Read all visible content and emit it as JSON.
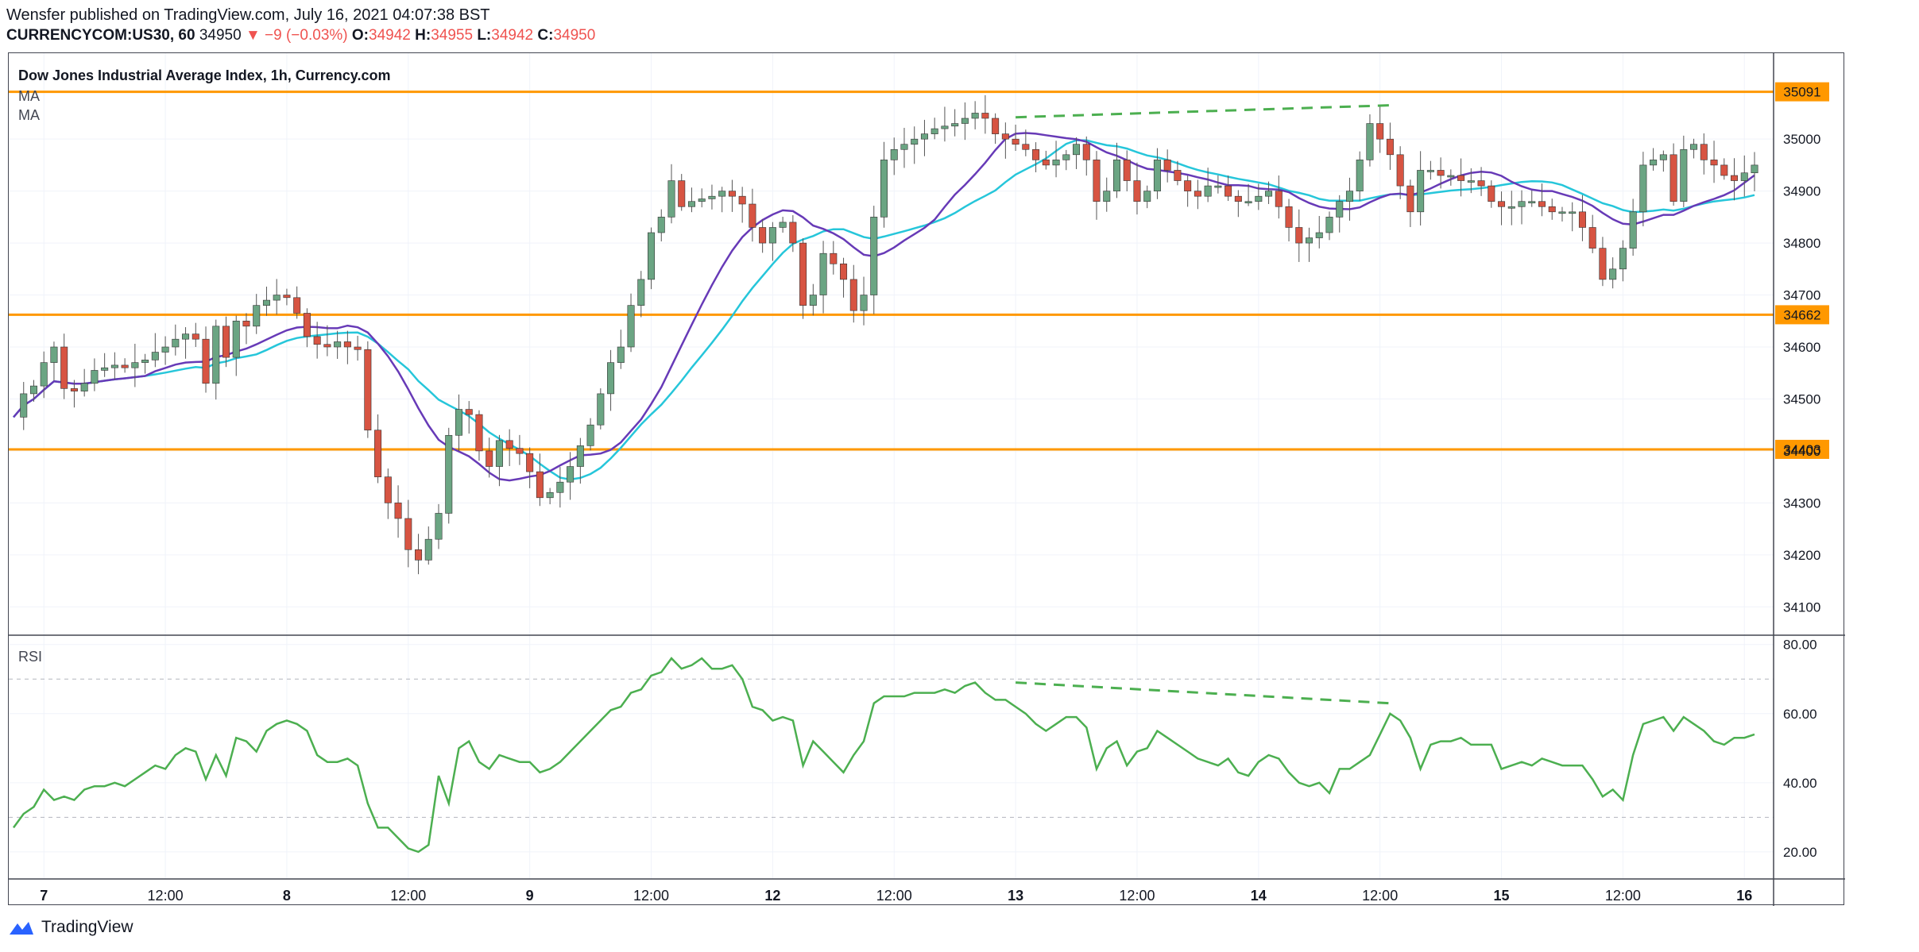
{
  "header": {
    "line1": "Wensfer published on TradingView.com, July 16, 2021 04:07:38 BST",
    "symbol": "CURRENCYCOM:US30, 60",
    "last": "34950",
    "change": "▼ −9 (−0.03%)",
    "o_label": "O:",
    "o_val": "34942",
    "h_label": "H:",
    "h_val": "34955",
    "l_label": "L:",
    "l_val": "34942",
    "c_label": "C:",
    "c_val": "34950"
  },
  "legend": {
    "title": "Dow Jones Industrial Average Index, 1h, Currency.com",
    "ma1": "MA",
    "ma2": "MA",
    "rsi": "RSI"
  },
  "brand": {
    "name": "TradingView"
  },
  "colors": {
    "up": "#6ba583",
    "down": "#d75442",
    "ma_slow": "#26c6da",
    "ma_fast": "#673ab7",
    "rsi": "#4caf50",
    "level": "#ff9800",
    "divergence": "#4caf50"
  },
  "chart_data": [
    {
      "type": "candlestick",
      "title": "Dow Jones Industrial Average Index, 1h, Currency.com",
      "ylim": [
        34050,
        35150
      ],
      "y_ticks": [
        "34100",
        "34200",
        "34300",
        "34400",
        "34500",
        "34600",
        "34700",
        "34800",
        "34900",
        "35000"
      ],
      "x_ticks": [
        {
          "t": 3,
          "label": "7"
        },
        {
          "t": 15,
          "label": "12:00"
        },
        {
          "t": 27,
          "label": "8"
        },
        {
          "t": 39,
          "label": "12:00"
        },
        {
          "t": 51,
          "label": "9"
        },
        {
          "t": 63,
          "label": "12:00"
        },
        {
          "t": 75,
          "label": "12"
        },
        {
          "t": 87,
          "label": "12:00"
        },
        {
          "t": 99,
          "label": "13"
        },
        {
          "t": 111,
          "label": "12:00"
        },
        {
          "t": 123,
          "label": "14"
        },
        {
          "t": 135,
          "label": "12:00"
        },
        {
          "t": 147,
          "label": "15"
        },
        {
          "t": 159,
          "label": "12:00"
        },
        {
          "t": 171,
          "label": "16"
        }
      ],
      "horizontal_levels": [
        {
          "value": 35091,
          "label": "35091"
        },
        {
          "value": 34662,
          "label": "34662"
        },
        {
          "value": 34403,
          "label": "34403"
        }
      ],
      "close": [
        34465,
        34510,
        34525,
        34570,
        34600,
        34520,
        34515,
        34530,
        34555,
        34560,
        34565,
        34560,
        34570,
        34575,
        34590,
        34600,
        34615,
        34625,
        34615,
        34530,
        34640,
        34580,
        34650,
        34640,
        34680,
        34690,
        34700,
        34695,
        34665,
        34620,
        34605,
        34600,
        34610,
        34600,
        34595,
        34440,
        34350,
        34300,
        34270,
        34210,
        34190,
        34230,
        34280,
        34430,
        34480,
        34470,
        34400,
        34370,
        34420,
        34405,
        34395,
        34360,
        34310,
        34320,
        34340,
        34370,
        34410,
        34450,
        34510,
        34570,
        34600,
        34680,
        34730,
        34820,
        34850,
        34920,
        34870,
        34880,
        34885,
        34890,
        34900,
        34890,
        34875,
        34830,
        34800,
        34830,
        34840,
        34800,
        34680,
        34700,
        34780,
        34760,
        34730,
        34670,
        34700,
        34850,
        34960,
        34980,
        34990,
        35000,
        35010,
        35020,
        35025,
        35030,
        35040,
        35050,
        35040,
        35010,
        35000,
        34990,
        34980,
        34960,
        34950,
        34960,
        34970,
        34990,
        34960,
        34880,
        34900,
        34960,
        34920,
        34880,
        34900,
        34960,
        34940,
        34920,
        34900,
        34890,
        34910,
        34910,
        34890,
        34880,
        34880,
        34890,
        34900,
        34870,
        34830,
        34800,
        34810,
        34820,
        34850,
        34880,
        34900,
        34960,
        35030,
        35000,
        34970,
        34910,
        34860,
        34940,
        34940,
        34930,
        34930,
        34920,
        34920,
        34910,
        34880,
        34870,
        34870,
        34880,
        34880,
        34870,
        34860,
        34860,
        34860,
        34830,
        34790,
        34730,
        34750,
        34790,
        34860,
        34950,
        34960,
        34970,
        34880,
        34980,
        34990,
        34960,
        34950,
        34930,
        34920,
        34935,
        34950
      ]
    },
    {
      "type": "line",
      "title": "RSI",
      "ylim": [
        14,
        82
      ],
      "y_ticks": [
        "20.00",
        "40.00",
        "60.00",
        "80.00"
      ],
      "reference_lines": [
        30,
        70
      ],
      "values": [
        27,
        31,
        33,
        38,
        35,
        36,
        35,
        38,
        39,
        39,
        40,
        39,
        41,
        43,
        45,
        44,
        48,
        50,
        49,
        41,
        48,
        42,
        53,
        52,
        49,
        55,
        57,
        58,
        57,
        55,
        48,
        46,
        46,
        47,
        45,
        34,
        27,
        27,
        24,
        21,
        20,
        22,
        42,
        34,
        50,
        52,
        46,
        44,
        48,
        47,
        46,
        46,
        43,
        44,
        46,
        49,
        52,
        55,
        58,
        61,
        62,
        66,
        67,
        71,
        72,
        76,
        73,
        74,
        76,
        73,
        73,
        74,
        70,
        62,
        61,
        58,
        59,
        58,
        45,
        52,
        49,
        46,
        43,
        48,
        52,
        63,
        65,
        65,
        65,
        66,
        66,
        66,
        67,
        66,
        68,
        69,
        66,
        64,
        64,
        62,
        60,
        57,
        55,
        57,
        59,
        59,
        56,
        44,
        50,
        52,
        45,
        49,
        50,
        55,
        53,
        51,
        49,
        47,
        46,
        45,
        47,
        43,
        42,
        46,
        48,
        47,
        43,
        40,
        39,
        40,
        37,
        44,
        44,
        46,
        48,
        54,
        60,
        58,
        53,
        44,
        51,
        52,
        52,
        53,
        51,
        51,
        51,
        44,
        45,
        46,
        45,
        47,
        46,
        45,
        45,
        45,
        41,
        36,
        38,
        35,
        48,
        57,
        58,
        59,
        55,
        59,
        57,
        55,
        52,
        51,
        53,
        53,
        54
      ]
    }
  ]
}
